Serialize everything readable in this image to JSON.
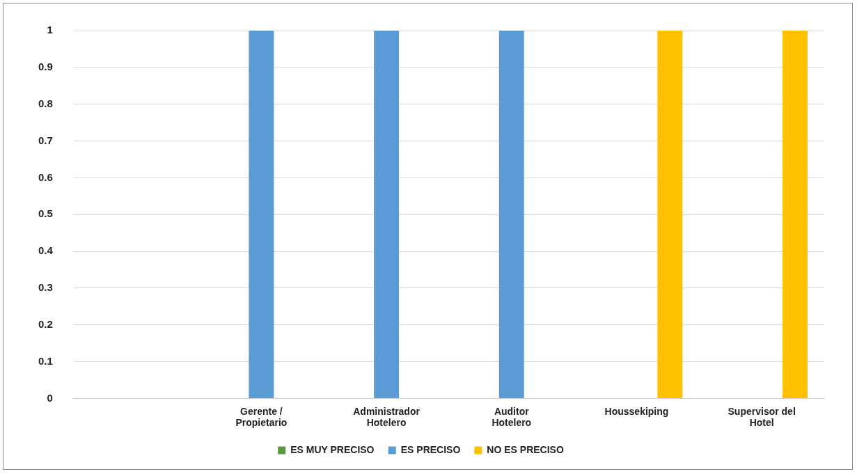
{
  "chart_data": {
    "type": "bar",
    "categories": [
      null,
      "Gerente / Propietario",
      "Administrador Hotelero",
      "Auditor Hotelero",
      "Houssekiping",
      "Supervisor del Hotel"
    ],
    "series": [
      {
        "name": "ES MUY PRECISO",
        "color": "#5b9a3c",
        "values": [
          null,
          0,
          0,
          0,
          0,
          0
        ]
      },
      {
        "name": "ES PRECISO",
        "color": "#5b9bd5",
        "values": [
          null,
          1,
          1,
          1,
          0,
          0
        ]
      },
      {
        "name": "NO ES PRECISO",
        "color": "#ffc000",
        "values": [
          null,
          0,
          0,
          0,
          1,
          1
        ]
      }
    ],
    "ylim": [
      0,
      1
    ],
    "yticks": [
      0,
      0.1,
      0.2,
      0.3,
      0.4,
      0.5,
      0.6,
      0.7,
      0.8,
      0.9,
      1
    ],
    "grid": "y",
    "legend": "bottom"
  }
}
